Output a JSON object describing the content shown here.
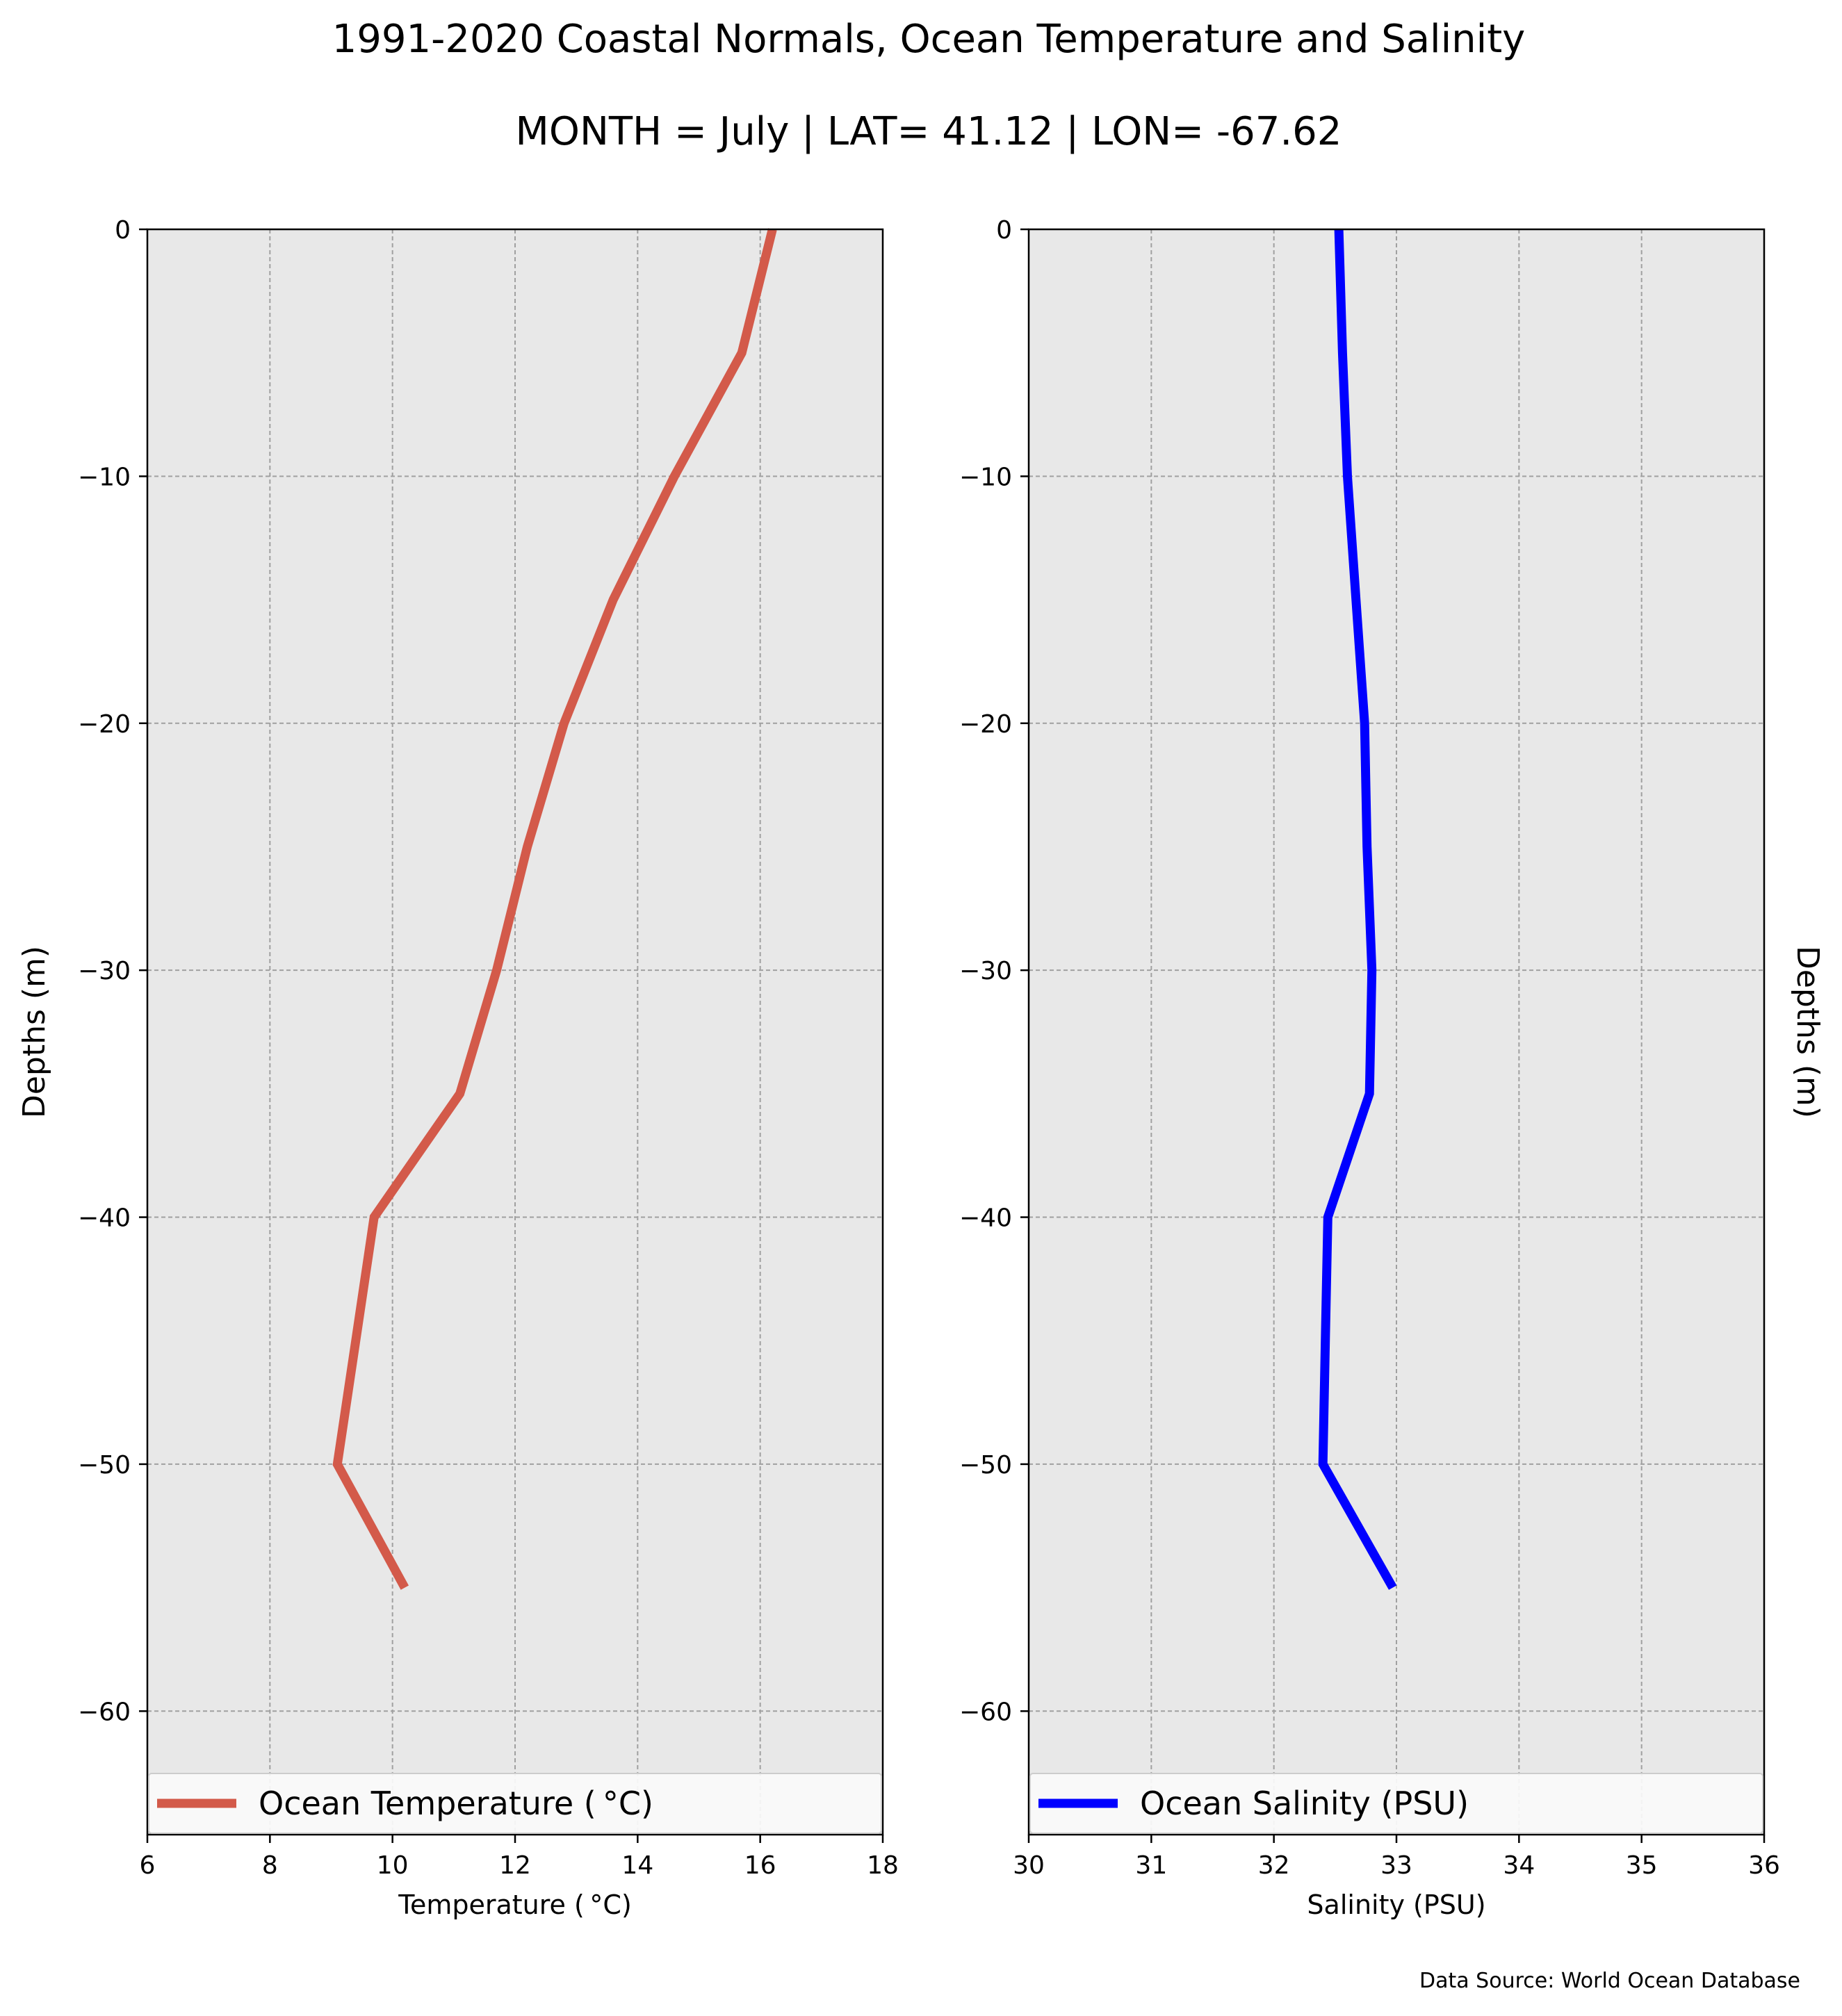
{
  "figure": {
    "title": "1991-2020 Coastal Normals, Ocean Temperature and Salinity",
    "subtitle": "MONTH = July | LAT= 41.12 | LON= -67.62",
    "source": "Data Source: World Ocean Database"
  },
  "chart_data": [
    {
      "type": "line",
      "xlabel": "Temperature ($^\\circ$C)",
      "xlabel_display": "Temperature ( °C)",
      "ylabel": "Depths (m)",
      "xlim": [
        6,
        18
      ],
      "ylim": [
        -65,
        0
      ],
      "xticks": [
        6,
        8,
        10,
        12,
        14,
        16,
        18
      ],
      "xtick_labels": [
        "6",
        "8",
        "10",
        "12",
        "14",
        "16",
        "18"
      ],
      "yticks": [
        0,
        -10,
        -20,
        -30,
        -40,
        -50,
        -60
      ],
      "ytick_labels": [
        "0",
        "−10",
        "−20",
        "−30",
        "−40",
        "−50",
        "−60"
      ],
      "grid": true,
      "legend_position": "lower center",
      "background_color": "#e8e8e8",
      "series": [
        {
          "name": "Ocean Temperature ( °C)",
          "color": "#d35a4a",
          "x": [
            16.2,
            15.7,
            14.6,
            13.6,
            12.8,
            12.2,
            11.7,
            11.1,
            9.7,
            9.4,
            9.1,
            10.2
          ],
          "y": [
            0,
            -5,
            -10,
            -15,
            -20,
            -25,
            -30,
            -35,
            -40,
            -45,
            -50,
            -55
          ]
        }
      ]
    },
    {
      "type": "line",
      "xlabel": "Salinity (PSU)",
      "ylabel": "Depths (m)",
      "xlim": [
        30,
        36
      ],
      "ylim": [
        -65,
        0
      ],
      "xticks": [
        30,
        31,
        32,
        33,
        34,
        35,
        36
      ],
      "xtick_labels": [
        "30",
        "31",
        "32",
        "33",
        "34",
        "35",
        "36"
      ],
      "yticks": [
        0,
        -10,
        -20,
        -30,
        -40,
        -50,
        -60
      ],
      "ytick_labels": [
        "0",
        "−10",
        "−20",
        "−30",
        "−40",
        "−50",
        "−60"
      ],
      "grid": true,
      "legend_position": "lower center",
      "background_color": "#e8e8e8",
      "series": [
        {
          "name": "Ocean Salinity (PSU)",
          "color": "#0000ff",
          "x": [
            32.53,
            32.56,
            32.6,
            32.67,
            32.74,
            32.76,
            32.8,
            32.78,
            32.44,
            32.42,
            32.4,
            32.97
          ],
          "y": [
            0,
            -5,
            -10,
            -15,
            -20,
            -25,
            -30,
            -35,
            -40,
            -45,
            -50,
            -55
          ]
        }
      ]
    }
  ]
}
